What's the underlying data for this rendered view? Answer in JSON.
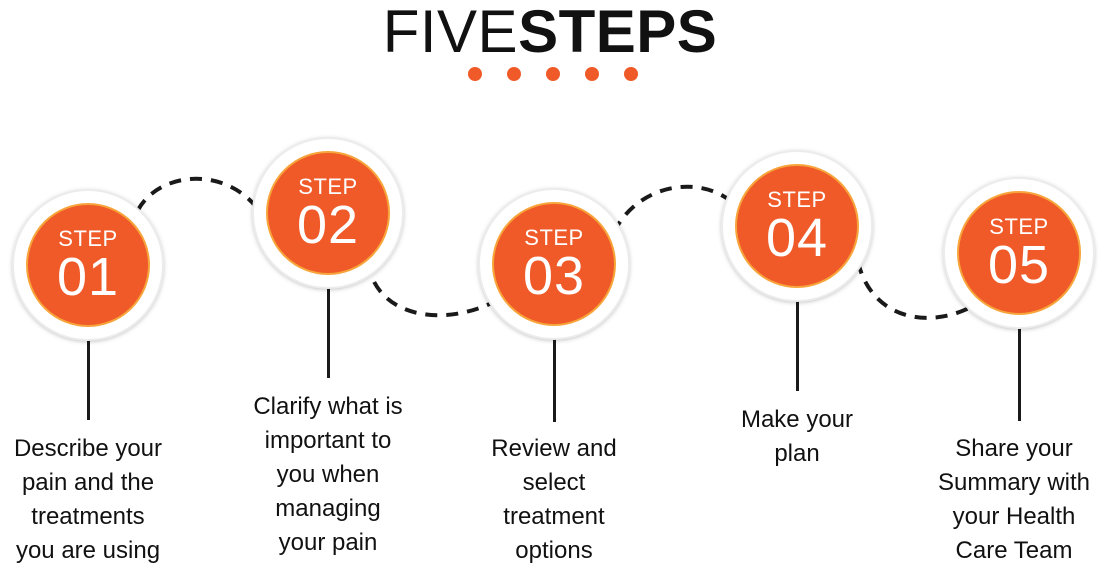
{
  "header": {
    "title_light": "FIVE",
    "title_bold": "STEPS",
    "dot_count": 5,
    "dot_color": "#ef5a28"
  },
  "colors": {
    "circle_fill": "#ef5a28",
    "circle_ring": "#f7a43a",
    "connector": "#1a1a1a",
    "text": "#111111"
  },
  "steps": [
    {
      "label": "STEP",
      "number": "01",
      "description": [
        "Describe your",
        "pain and the",
        "treatments",
        "you are using"
      ]
    },
    {
      "label": "STEP",
      "number": "02",
      "description": [
        "Clarify what is",
        "important to",
        "you when",
        "managing",
        "your pain"
      ]
    },
    {
      "label": "STEP",
      "number": "03",
      "description": [
        "Review and",
        "select",
        "treatment",
        "options"
      ]
    },
    {
      "label": "STEP",
      "number": "04",
      "description": [
        "Make your",
        "plan"
      ]
    },
    {
      "label": "STEP",
      "number": "05",
      "description": [
        "Share your",
        "Summary with",
        "your Health",
        "Care Team"
      ]
    }
  ]
}
